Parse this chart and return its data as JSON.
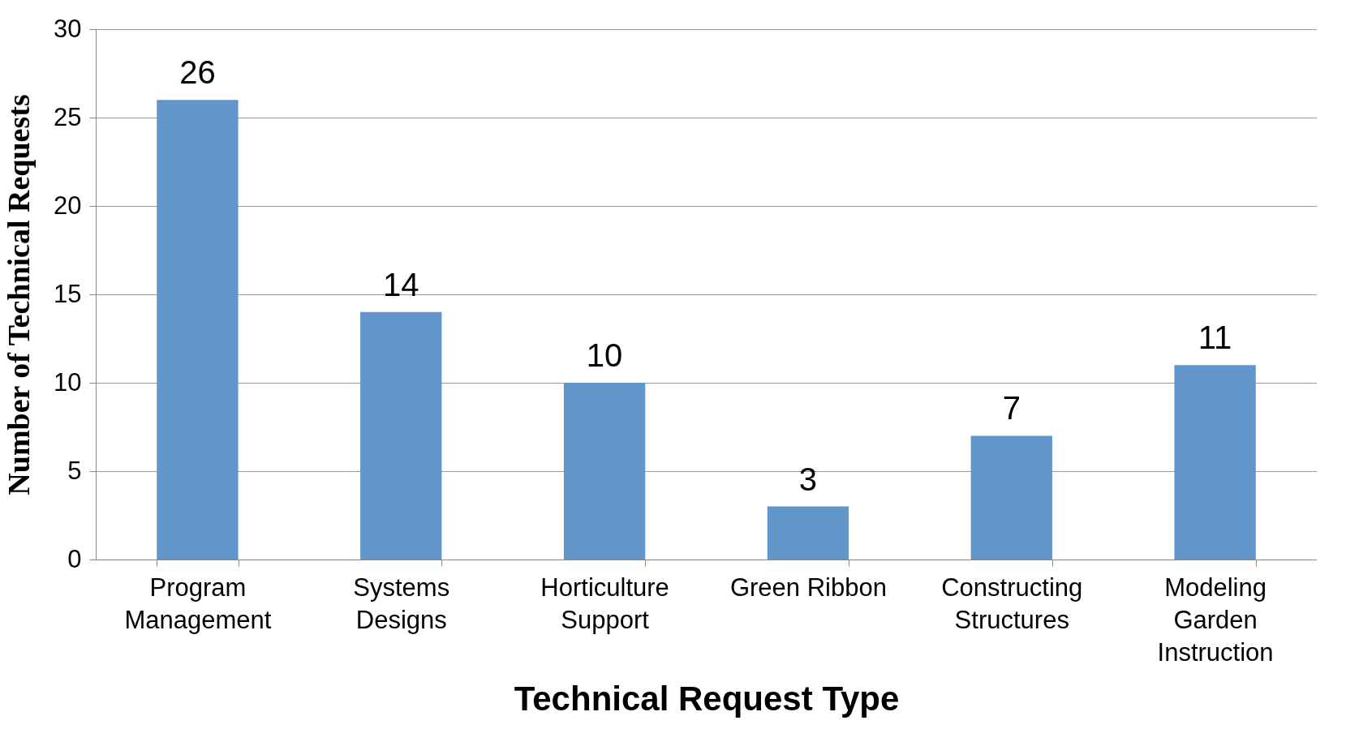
{
  "chart_data": {
    "type": "bar",
    "xlabel": "Technical Request Type",
    "ylabel": "Number of Technical Requests",
    "categories": [
      "Program\nManagement",
      "Systems\nDesigns",
      "Horticulture\nSupport",
      "Green Ribbon",
      "Constructing\nStructures",
      "Modeling\nGarden\nInstruction"
    ],
    "values": [
      26,
      14,
      10,
      3,
      7,
      11
    ],
    "color": "#6096c9",
    "ylim": [
      0,
      30
    ],
    "yticks": [
      0,
      5,
      10,
      15,
      20,
      25,
      30
    ],
    "grid": "y",
    "data_labels": true
  }
}
